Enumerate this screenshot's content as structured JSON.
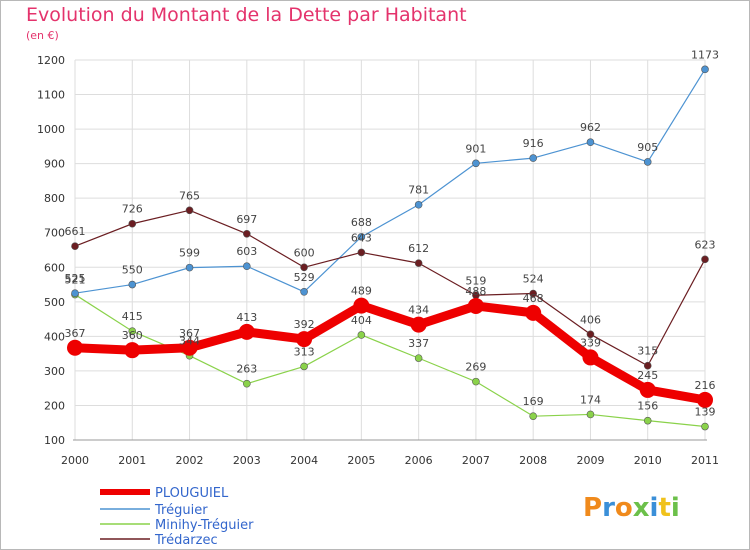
{
  "chart_data": {
    "type": "line",
    "title": "Evolution du Montant de la Dette par Habitant",
    "subtitle": "(en €)",
    "x": [
      "2000",
      "2001",
      "2002",
      "2003",
      "2004",
      "2005",
      "2006",
      "2007",
      "2008",
      "2009",
      "2010",
      "2011"
    ],
    "ylim": [
      100,
      1200
    ],
    "yticks": [
      100,
      200,
      300,
      400,
      500,
      600,
      700,
      800,
      900,
      1000,
      1100,
      1200
    ],
    "grid": true,
    "legend_position": "bottom-left",
    "series": [
      {
        "name": "PLOUGUIEL",
        "color": "#ee0000",
        "values": [
          367,
          360,
          367,
          413,
          392,
          489,
          434,
          488,
          468,
          339,
          245,
          216
        ],
        "labels": [
          "367",
          "360",
          "367",
          "413",
          "392",
          "489",
          "434",
          "488",
          "468",
          "339",
          "245",
          "216"
        ]
      },
      {
        "name": "Tréguier",
        "color": "#4d93d2",
        "values": [
          525,
          550,
          599,
          603,
          529,
          688,
          781,
          901,
          916,
          962,
          905,
          1173
        ],
        "labels": [
          "525",
          "550",
          "599",
          "603",
          "529",
          "688",
          "781",
          "901",
          "916",
          "962",
          "905",
          "1173"
        ]
      },
      {
        "name": "Minihy-Tréguier",
        "color": "#8ad24a",
        "values": [
          521,
          415,
          344,
          263,
          313,
          404,
          337,
          269,
          169,
          174,
          156,
          139
        ],
        "labels": [
          "521",
          "415",
          "344",
          "263",
          "313",
          "404",
          "337",
          "269",
          "169",
          "174",
          "156",
          "139"
        ]
      },
      {
        "name": "Trédarzec",
        "color": "#6b1e22",
        "values": [
          661,
          726,
          765,
          697,
          600,
          643,
          612,
          519,
          524,
          406,
          315,
          623
        ],
        "labels": [
          "661",
          "726",
          "765",
          "697",
          "600",
          "643",
          "612",
          "519",
          "524",
          "406",
          "315",
          "623"
        ]
      }
    ]
  },
  "logo": {
    "text": "Proxiti"
  }
}
